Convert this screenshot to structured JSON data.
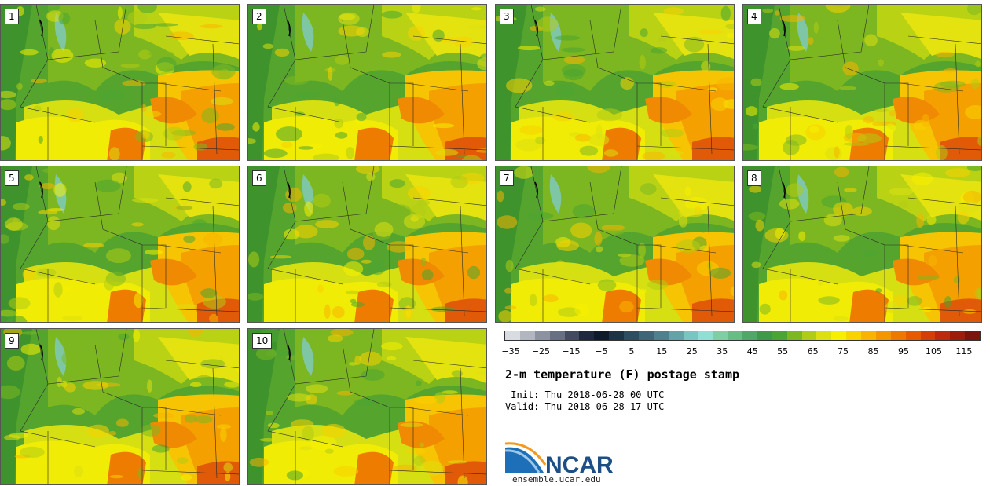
{
  "panels": [
    {
      "label": "1"
    },
    {
      "label": "2"
    },
    {
      "label": "3"
    },
    {
      "label": "4"
    },
    {
      "label": "5"
    },
    {
      "label": "6"
    },
    {
      "label": "7"
    },
    {
      "label": "8"
    },
    {
      "label": "9"
    },
    {
      "label": "10"
    }
  ],
  "colorbar": {
    "colors": [
      "#d8dbe0",
      "#b2b6c0",
      "#8c92a0",
      "#676f82",
      "#424b62",
      "#1e2840",
      "#0e1a2e",
      "#1c3448",
      "#2d4d60",
      "#3e6678",
      "#4f8090",
      "#62a2a8",
      "#77c6c2",
      "#8ee0d4",
      "#7ed0a4",
      "#66be84",
      "#4ea868",
      "#3c9a48",
      "#4aa632",
      "#7eb820",
      "#b0cc14",
      "#dce010",
      "#f6f000",
      "#fad200",
      "#f8b400",
      "#f49600",
      "#ee7800",
      "#e65a00",
      "#d43e08",
      "#bc2a0c",
      "#9e1c0c",
      "#7a140c"
    ],
    "ticks": [
      "−35",
      "−25",
      "−15",
      "−5",
      "5",
      "15",
      "25",
      "35",
      "45",
      "55",
      "65",
      "75",
      "85",
      "95",
      "105",
      "115"
    ]
  },
  "title": "2-m temperature (F) postage stamp",
  "init": " Init: Thu 2018-06-28 00 UTC",
  "valid": "Valid: Thu 2018-06-28 17 UTC",
  "logo": {
    "text": "NCAR",
    "url": "ensemble.ucar.edu"
  }
}
